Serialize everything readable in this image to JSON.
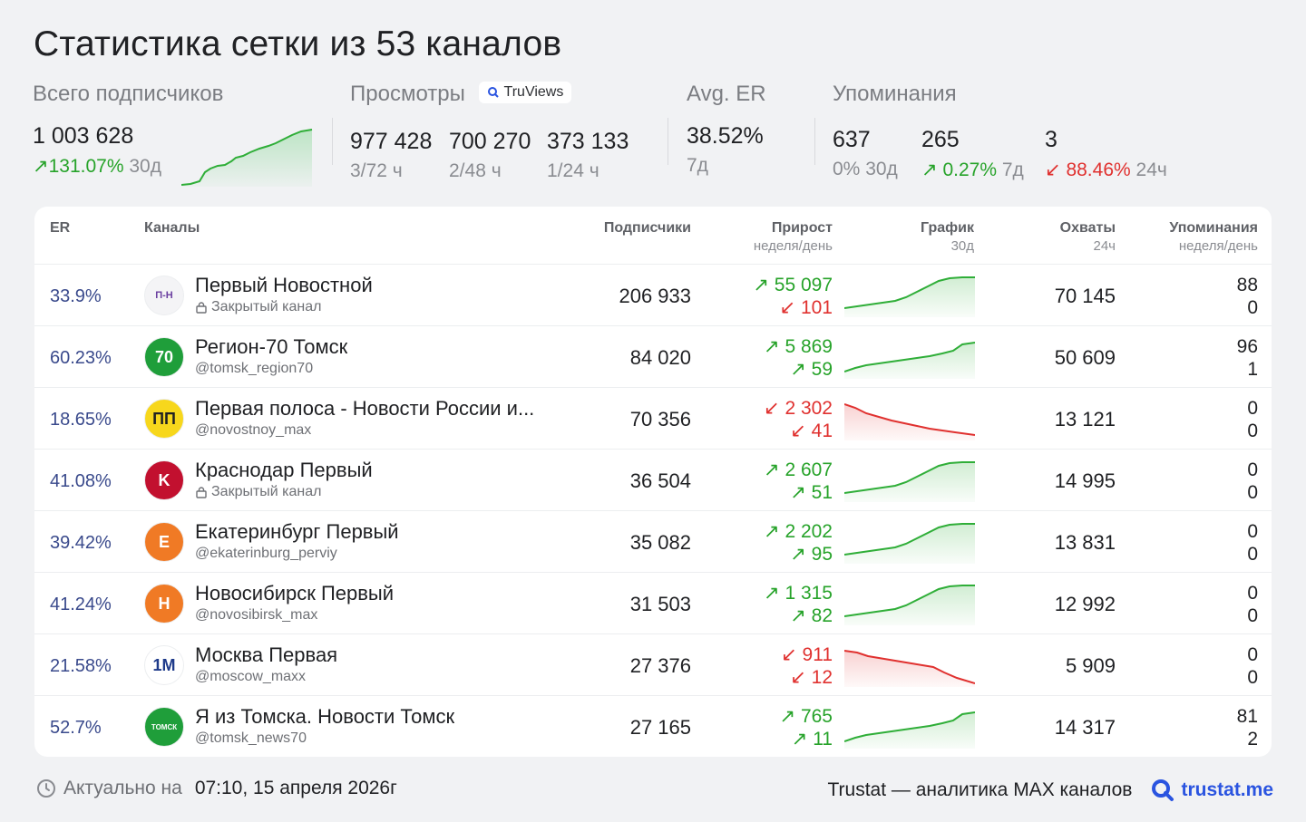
{
  "title": "Статистика сетки из 53 каналов",
  "stats": {
    "subscribers": {
      "label": "Всего подписчиков",
      "value": "1 003 628",
      "change": "131.07%",
      "period": "30д"
    },
    "views": {
      "label": "Просмотры",
      "badge": "TruViews",
      "items": [
        {
          "value": "977 428",
          "sub": "3/72 ч"
        },
        {
          "value": "700 270",
          "sub": "2/48 ч"
        },
        {
          "value": "373 133",
          "sub": "1/24 ч"
        }
      ]
    },
    "er": {
      "label": "Avg. ER",
      "value": "38.52%",
      "sub": "7д"
    },
    "mentions": {
      "label": "Упоминания",
      "items": [
        {
          "value": "637",
          "change": "0%",
          "period": "30д",
          "trend": "flat"
        },
        {
          "value": "265",
          "change": "0.27%",
          "period": "7д",
          "trend": "up"
        },
        {
          "value": "3",
          "change": "88.46%",
          "period": "24ч",
          "trend": "down"
        }
      ]
    }
  },
  "table": {
    "headers": {
      "er": "ER",
      "channels": "Каналы",
      "subs": "Подписчики",
      "growth": "Прирост",
      "growth_sub": "неделя/день",
      "graph": "График",
      "graph_sub": "30д",
      "reach": "Охваты",
      "reach_sub": "24ч",
      "mentions": "Упоминания",
      "mentions_sub": "неделя/день"
    },
    "rows": [
      {
        "er": "33.9%",
        "name": "Первый Новостной",
        "handle": "Закрытый канал",
        "closed": true,
        "subs": "206 933",
        "g_week": "55 097",
        "g_day": "101",
        "g_week_dir": "up",
        "g_day_dir": "down",
        "trend": "up",
        "reach": "70 145",
        "m_week": "88",
        "m_day": "0",
        "avatar_text": "П-Н",
        "avatar_bg": "#f4f4f6",
        "avatar_fg": "#6b3fa0"
      },
      {
        "er": "60.23%",
        "name": "Регион-70 Томск",
        "handle": "@tomsk_region70",
        "closed": false,
        "subs": "84 020",
        "g_week": "5 869",
        "g_day": "59",
        "g_week_dir": "up",
        "g_day_dir": "up",
        "trend": "up",
        "reach": "50 609",
        "m_week": "96",
        "m_day": "1",
        "avatar_text": "70",
        "avatar_bg": "#1f9e3a",
        "avatar_fg": "#ffffff"
      },
      {
        "er": "18.65%",
        "name": "Первая полоса - Новости России и...",
        "handle": "@novostnoy_max",
        "closed": false,
        "subs": "70 356",
        "g_week": "2 302",
        "g_day": "41",
        "g_week_dir": "down",
        "g_day_dir": "down",
        "trend": "down",
        "reach": "13 121",
        "m_week": "0",
        "m_day": "0",
        "avatar_text": "ПП",
        "avatar_bg": "#f7d71c",
        "avatar_fg": "#1f2023"
      },
      {
        "er": "41.08%",
        "name": "Краснодар Первый",
        "handle": "Закрытый канал",
        "closed": true,
        "subs": "36 504",
        "g_week": "2 607",
        "g_day": "51",
        "g_week_dir": "up",
        "g_day_dir": "up",
        "trend": "up",
        "reach": "14 995",
        "m_week": "0",
        "m_day": "0",
        "avatar_text": "K",
        "avatar_bg": "#c2102f",
        "avatar_fg": "#ffffff"
      },
      {
        "er": "39.42%",
        "name": "Екатеринбург Первый",
        "handle": "@ekaterinburg_perviy",
        "closed": false,
        "subs": "35 082",
        "g_week": "2 202",
        "g_day": "95",
        "g_week_dir": "up",
        "g_day_dir": "up",
        "trend": "up",
        "reach": "13 831",
        "m_week": "0",
        "m_day": "0",
        "avatar_text": "E",
        "avatar_bg": "#f07a25",
        "avatar_fg": "#ffffff"
      },
      {
        "er": "41.24%",
        "name": "Новосибирск Первый",
        "handle": "@novosibirsk_max",
        "closed": false,
        "subs": "31 503",
        "g_week": "1 315",
        "g_day": "82",
        "g_week_dir": "up",
        "g_day_dir": "up",
        "trend": "up",
        "reach": "12 992",
        "m_week": "0",
        "m_day": "0",
        "avatar_text": "H",
        "avatar_bg": "#f07a25",
        "avatar_fg": "#ffffff"
      },
      {
        "er": "21.58%",
        "name": "Москва Первая",
        "handle": "@moscow_maxx",
        "closed": false,
        "subs": "27 376",
        "g_week": "911",
        "g_day": "12",
        "g_week_dir": "down",
        "g_day_dir": "down",
        "trend": "down",
        "reach": "5 909",
        "m_week": "0",
        "m_day": "0",
        "avatar_text": "1M",
        "avatar_bg": "#ffffff",
        "avatar_fg": "#1e3a8a"
      },
      {
        "er": "52.7%",
        "name": "Я из Томска. Новости Томск",
        "handle": "@tomsk_news70",
        "closed": false,
        "subs": "27 165",
        "g_week": "765",
        "g_day": "11",
        "g_week_dir": "up",
        "g_day_dir": "up",
        "trend": "up",
        "reach": "14 317",
        "m_week": "81",
        "m_day": "2",
        "avatar_text": "ТОМСК",
        "avatar_bg": "#1f9e3a",
        "avatar_fg": "#ffffff"
      }
    ]
  },
  "footer": {
    "updated_label": "Актуально на",
    "updated_value": "07:10, 15 апреля 2026г",
    "tagline": "Trustat — аналитика MAX каналов",
    "brand": "trustat.me"
  }
}
